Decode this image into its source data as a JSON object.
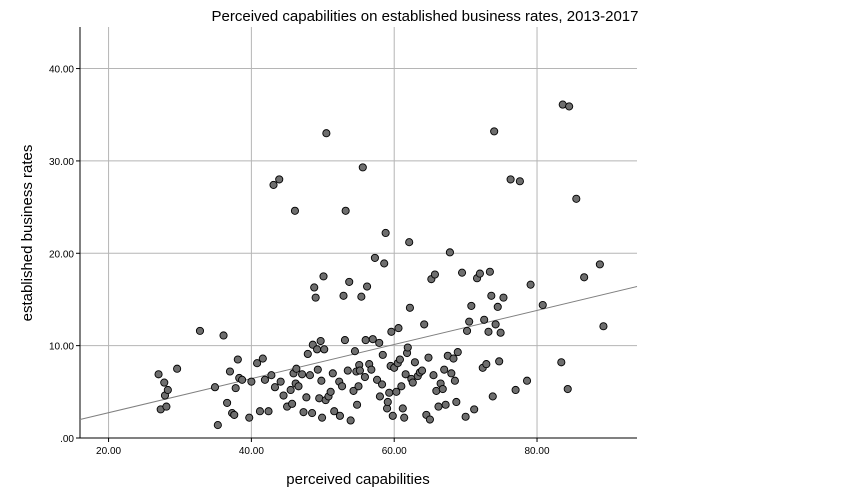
{
  "chart_data": {
    "type": "scatter",
    "title": "Perceived capabilities on established business rates, 2013-2017",
    "xlabel": "perceived capabilities",
    "ylabel": "established business rates",
    "xlim": [
      16.0,
      94.0
    ],
    "ylim": [
      0.0,
      44.5
    ],
    "x_ticks": [
      20,
      40,
      60,
      80
    ],
    "x_tick_labels": [
      "20.00",
      "40.00",
      "60.00",
      "80.00"
    ],
    "y_ticks": [
      0,
      10,
      20,
      30,
      40
    ],
    "y_tick_labels": [
      ".00",
      "10.00",
      "20.00",
      "30.00",
      "40.00"
    ],
    "grid": true,
    "fit_line": {
      "x0": 16.0,
      "y0": 2.0,
      "x1": 94.0,
      "y1": 16.4
    },
    "colors": {
      "point_fill": "#6e6e6e",
      "point_stroke": "#000000",
      "grid": "#b5b5b5",
      "axis": "#000000",
      "fit_line": "#808080"
    },
    "points": [
      [
        27.0,
        6.9
      ],
      [
        27.3,
        3.1
      ],
      [
        27.8,
        6.0
      ],
      [
        27.9,
        4.6
      ],
      [
        28.1,
        3.4
      ],
      [
        28.3,
        5.2
      ],
      [
        29.6,
        7.5
      ],
      [
        32.8,
        11.6
      ],
      [
        34.9,
        5.5
      ],
      [
        35.3,
        1.4
      ],
      [
        36.1,
        11.1
      ],
      [
        36.6,
        3.8
      ],
      [
        37.0,
        7.2
      ],
      [
        37.3,
        2.7
      ],
      [
        37.6,
        2.5
      ],
      [
        37.8,
        5.4
      ],
      [
        38.1,
        8.5
      ],
      [
        38.3,
        6.5
      ],
      [
        38.7,
        6.3
      ],
      [
        39.7,
        2.2
      ],
      [
        40.0,
        6.1
      ],
      [
        40.8,
        8.1
      ],
      [
        41.2,
        2.9
      ],
      [
        41.6,
        8.6
      ],
      [
        41.9,
        6.3
      ],
      [
        42.4,
        2.9
      ],
      [
        42.8,
        6.8
      ],
      [
        43.1,
        27.4
      ],
      [
        43.3,
        5.5
      ],
      [
        43.9,
        28.0
      ],
      [
        44.1,
        6.1
      ],
      [
        44.5,
        4.6
      ],
      [
        45.0,
        3.4
      ],
      [
        45.5,
        5.2
      ],
      [
        45.7,
        3.7
      ],
      [
        45.9,
        7.0
      ],
      [
        46.1,
        24.6
      ],
      [
        46.2,
        5.9
      ],
      [
        46.3,
        7.5
      ],
      [
        46.6,
        5.6
      ],
      [
        47.1,
        6.9
      ],
      [
        47.3,
        2.8
      ],
      [
        47.7,
        4.4
      ],
      [
        47.9,
        9.1
      ],
      [
        48.2,
        6.8
      ],
      [
        48.5,
        2.7
      ],
      [
        48.6,
        10.1
      ],
      [
        48.8,
        16.3
      ],
      [
        49.0,
        15.2
      ],
      [
        49.2,
        9.6
      ],
      [
        49.3,
        7.4
      ],
      [
        49.5,
        4.3
      ],
      [
        49.7,
        10.5
      ],
      [
        49.8,
        6.2
      ],
      [
        49.9,
        2.2
      ],
      [
        50.1,
        17.5
      ],
      [
        50.2,
        9.6
      ],
      [
        50.4,
        4.1
      ],
      [
        50.5,
        33.0
      ],
      [
        50.8,
        4.5
      ],
      [
        51.1,
        5.0
      ],
      [
        51.4,
        7.0
      ],
      [
        51.6,
        2.9
      ],
      [
        52.3,
        6.1
      ],
      [
        52.4,
        2.4
      ],
      [
        52.7,
        5.6
      ],
      [
        52.9,
        15.4
      ],
      [
        53.1,
        10.6
      ],
      [
        53.2,
        24.6
      ],
      [
        53.5,
        7.3
      ],
      [
        53.7,
        16.9
      ],
      [
        53.9,
        1.9
      ],
      [
        54.3,
        5.1
      ],
      [
        54.5,
        9.4
      ],
      [
        54.7,
        7.2
      ],
      [
        54.8,
        3.6
      ],
      [
        55.0,
        5.6
      ],
      [
        55.1,
        7.9
      ],
      [
        55.2,
        7.3
      ],
      [
        55.4,
        15.3
      ],
      [
        55.6,
        29.3
      ],
      [
        55.9,
        6.6
      ],
      [
        56.0,
        10.6
      ],
      [
        56.2,
        16.4
      ],
      [
        56.5,
        8.0
      ],
      [
        56.8,
        7.4
      ],
      [
        57.0,
        10.7
      ],
      [
        57.3,
        19.5
      ],
      [
        57.6,
        6.3
      ],
      [
        57.9,
        10.3
      ],
      [
        58.0,
        4.5
      ],
      [
        58.3,
        5.8
      ],
      [
        58.4,
        9.0
      ],
      [
        58.6,
        18.9
      ],
      [
        58.8,
        22.2
      ],
      [
        59.0,
        3.2
      ],
      [
        59.1,
        3.9
      ],
      [
        59.3,
        4.9
      ],
      [
        59.5,
        7.8
      ],
      [
        59.6,
        11.5
      ],
      [
        59.8,
        2.4
      ],
      [
        60.0,
        7.6
      ],
      [
        60.3,
        5.0
      ],
      [
        60.5,
        8.1
      ],
      [
        60.6,
        11.9
      ],
      [
        60.8,
        8.5
      ],
      [
        61.0,
        5.6
      ],
      [
        61.2,
        3.2
      ],
      [
        61.4,
        2.2
      ],
      [
        61.6,
        6.9
      ],
      [
        61.8,
        9.2
      ],
      [
        61.9,
        9.8
      ],
      [
        62.1,
        21.2
      ],
      [
        62.2,
        14.1
      ],
      [
        62.4,
        6.4
      ],
      [
        62.6,
        6.0
      ],
      [
        62.9,
        8.2
      ],
      [
        63.3,
        6.7
      ],
      [
        63.6,
        7.1
      ],
      [
        63.9,
        7.3
      ],
      [
        64.2,
        12.3
      ],
      [
        64.5,
        2.5
      ],
      [
        64.8,
        8.7
      ],
      [
        65.0,
        2.0
      ],
      [
        65.2,
        17.2
      ],
      [
        65.5,
        6.8
      ],
      [
        65.7,
        17.7
      ],
      [
        65.9,
        5.1
      ],
      [
        66.2,
        3.4
      ],
      [
        66.5,
        5.9
      ],
      [
        66.8,
        5.3
      ],
      [
        67.0,
        7.4
      ],
      [
        67.2,
        3.6
      ],
      [
        67.5,
        8.9
      ],
      [
        67.8,
        20.1
      ],
      [
        68.0,
        7.0
      ],
      [
        68.3,
        8.6
      ],
      [
        68.5,
        6.2
      ],
      [
        68.7,
        3.9
      ],
      [
        68.9,
        9.3
      ],
      [
        69.5,
        17.9
      ],
      [
        70.0,
        2.3
      ],
      [
        70.2,
        11.6
      ],
      [
        70.5,
        12.6
      ],
      [
        70.8,
        14.3
      ],
      [
        71.2,
        3.1
      ],
      [
        71.6,
        17.3
      ],
      [
        72.0,
        17.8
      ],
      [
        72.4,
        7.6
      ],
      [
        72.6,
        12.8
      ],
      [
        72.9,
        8.0
      ],
      [
        73.2,
        11.5
      ],
      [
        73.4,
        18.0
      ],
      [
        73.6,
        15.4
      ],
      [
        73.8,
        4.5
      ],
      [
        74.0,
        33.2
      ],
      [
        74.2,
        12.3
      ],
      [
        74.5,
        14.2
      ],
      [
        74.7,
        8.3
      ],
      [
        74.9,
        11.4
      ],
      [
        75.3,
        15.2
      ],
      [
        76.3,
        28.0
      ],
      [
        77.0,
        5.2
      ],
      [
        77.6,
        27.8
      ],
      [
        78.6,
        6.2
      ],
      [
        79.1,
        16.6
      ],
      [
        80.8,
        14.4
      ],
      [
        83.4,
        8.2
      ],
      [
        83.6,
        36.1
      ],
      [
        84.3,
        5.3
      ],
      [
        84.5,
        35.9
      ],
      [
        85.5,
        25.9
      ],
      [
        86.6,
        17.4
      ],
      [
        88.8,
        18.8
      ],
      [
        89.3,
        12.1
      ]
    ]
  }
}
